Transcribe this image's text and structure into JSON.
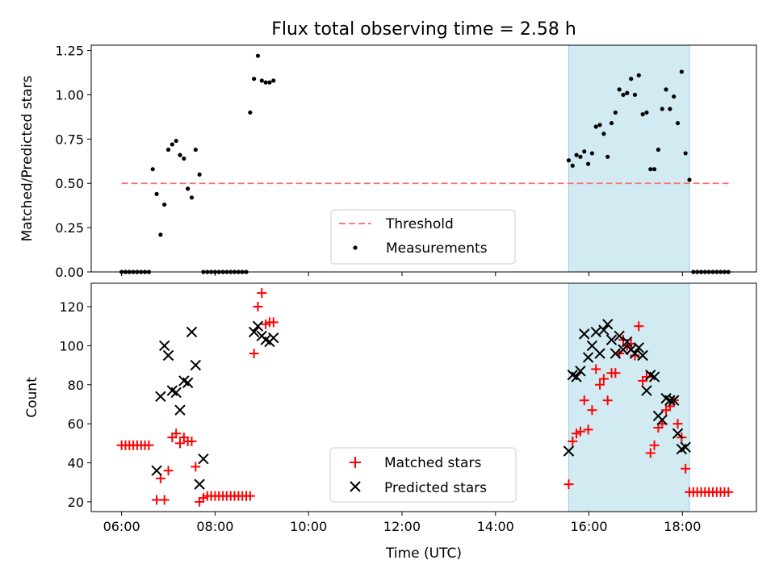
{
  "chart_data": [
    {
      "type": "scatter",
      "title": "Flux total observing time = 2.58 h",
      "xlabel": "",
      "ylabel": "Matched/Predicted stars",
      "xlim": [
        "05:21",
        "19:35"
      ],
      "ylim": [
        0,
        1.28
      ],
      "yticks": [
        "0.00",
        "0.25",
        "0.50",
        "0.75",
        "1.00",
        "1.25"
      ],
      "yticks_values": [
        0,
        0.25,
        0.5,
        0.75,
        1.0,
        1.25
      ],
      "grid": false,
      "legend_position": "bottom-center",
      "shaded_interval": {
        "start": "15:34",
        "end": "18:09",
        "color": "#add8e6"
      },
      "threshold": {
        "name": "Threshold",
        "value": 0.5,
        "x_start": "06:00",
        "x_end": "19:00",
        "color": "#ff6b6b"
      },
      "series": [
        {
          "name": "Measurements",
          "color": "#000000",
          "x": [
            "06:00",
            "06:05",
            "06:10",
            "06:15",
            "06:20",
            "06:25",
            "06:30",
            "06:35",
            "06:40",
            "06:45",
            "06:50",
            "06:55",
            "07:00",
            "07:05",
            "07:10",
            "07:15",
            "07:20",
            "07:25",
            "07:30",
            "07:35",
            "07:40",
            "07:45",
            "07:50",
            "07:55",
            "08:00",
            "08:05",
            "08:10",
            "08:15",
            "08:20",
            "08:25",
            "08:30",
            "08:35",
            "08:40",
            "08:45",
            "08:50",
            "08:55",
            "09:00",
            "09:05",
            "09:10",
            "09:15",
            "15:34",
            "15:39",
            "15:44",
            "15:49",
            "15:54",
            "15:59",
            "16:04",
            "16:09",
            "16:14",
            "16:19",
            "16:24",
            "16:29",
            "16:34",
            "16:39",
            "16:44",
            "16:49",
            "16:54",
            "16:59",
            "17:04",
            "17:09",
            "17:14",
            "17:19",
            "17:24",
            "17:29",
            "17:34",
            "17:39",
            "17:44",
            "17:49",
            "17:54",
            "17:59",
            "18:04",
            "18:09",
            "18:14",
            "18:19",
            "18:24",
            "18:29",
            "18:34",
            "18:39",
            "18:44",
            "18:49",
            "18:54",
            "18:59"
          ],
          "y": [
            0,
            0,
            0,
            0,
            0,
            0,
            0,
            0,
            0.58,
            0.44,
            0.21,
            0.38,
            0.69,
            0.72,
            0.74,
            0.66,
            0.64,
            0.47,
            0.42,
            0.69,
            0.55,
            0,
            0,
            0,
            0,
            0,
            0,
            0,
            0,
            0,
            0,
            0,
            0,
            0.9,
            1.09,
            1.22,
            1.08,
            1.07,
            1.07,
            1.08,
            0.63,
            0.6,
            0.66,
            0.65,
            0.68,
            0.61,
            0.67,
            0.82,
            0.83,
            0.78,
            0.65,
            0.84,
            0.9,
            1.03,
            1.0,
            1.01,
            1.09,
            1.0,
            1.11,
            0.89,
            0.9,
            0.58,
            0.58,
            0.69,
            0.92,
            1.03,
            0.92,
            0.99,
            0.84,
            1.13,
            0.67,
            0.52,
            0,
            0,
            0,
            0,
            0,
            0,
            0,
            0,
            0,
            0
          ]
        }
      ]
    },
    {
      "type": "scatter",
      "title": "",
      "xlabel": "Time (UTC)",
      "ylabel": "Count",
      "xlim": [
        "05:21",
        "19:35"
      ],
      "xticks": [
        "06:00",
        "08:00",
        "10:00",
        "12:00",
        "14:00",
        "16:00",
        "18:00"
      ],
      "ylim": [
        15,
        132
      ],
      "yticks": [
        "20",
        "40",
        "60",
        "80",
        "100",
        "120"
      ],
      "yticks_values": [
        20,
        40,
        60,
        80,
        100,
        120
      ],
      "grid": false,
      "legend_position": "bottom-center",
      "shaded_interval": {
        "start": "15:34",
        "end": "18:09",
        "color": "#add8e6"
      },
      "series": [
        {
          "name": "Matched stars",
          "marker": "plus",
          "color": "#ff0000",
          "x": [
            "06:00",
            "06:05",
            "06:10",
            "06:15",
            "06:20",
            "06:25",
            "06:30",
            "06:35",
            "06:45",
            "06:50",
            "06:55",
            "07:00",
            "07:05",
            "07:10",
            "07:15",
            "07:20",
            "07:25",
            "07:30",
            "07:35",
            "07:40",
            "07:45",
            "07:50",
            "07:55",
            "08:00",
            "08:05",
            "08:10",
            "08:15",
            "08:20",
            "08:25",
            "08:30",
            "08:35",
            "08:40",
            "08:45",
            "08:50",
            "08:55",
            "09:00",
            "09:05",
            "09:10",
            "09:15",
            "15:34",
            "15:39",
            "15:44",
            "15:49",
            "15:54",
            "15:59",
            "16:04",
            "16:09",
            "16:14",
            "16:19",
            "16:24",
            "16:29",
            "16:34",
            "16:39",
            "16:44",
            "16:49",
            "16:54",
            "16:59",
            "17:04",
            "17:09",
            "17:14",
            "17:19",
            "17:24",
            "17:29",
            "17:34",
            "17:39",
            "17:44",
            "17:49",
            "17:54",
            "17:59",
            "18:04",
            "18:09",
            "18:14",
            "18:19",
            "18:24",
            "18:29",
            "18:34",
            "18:39",
            "18:44",
            "18:49",
            "18:54",
            "18:59"
          ],
          "y": [
            49,
            49,
            49,
            49,
            49,
            49,
            49,
            49,
            21,
            32,
            21,
            36,
            53,
            55,
            50,
            53,
            51,
            51,
            38,
            20,
            22,
            23,
            23,
            23,
            23,
            23,
            23,
            23,
            23,
            23,
            23,
            23,
            23,
            96,
            120,
            127,
            111,
            112,
            112,
            29,
            51,
            55,
            56,
            72,
            57,
            67,
            88,
            80,
            83,
            72,
            86,
            86,
            96,
            103,
            100,
            101,
            95,
            110,
            82,
            84,
            45,
            49,
            58,
            60,
            67,
            69,
            72,
            60,
            53,
            37,
            25,
            25,
            25,
            25,
            25,
            25,
            25,
            25,
            25,
            25,
            25
          ]
        },
        {
          "name": "Predicted stars",
          "marker": "x",
          "color": "#000000",
          "x": [
            "06:45",
            "06:50",
            "06:55",
            "07:00",
            "07:05",
            "07:10",
            "07:15",
            "07:20",
            "07:25",
            "07:30",
            "07:35",
            "07:40",
            "07:45",
            "08:50",
            "08:55",
            "09:00",
            "09:05",
            "09:10",
            "09:15",
            "15:34",
            "15:39",
            "15:44",
            "15:49",
            "15:54",
            "15:59",
            "16:04",
            "16:09",
            "16:14",
            "16:19",
            "16:24",
            "16:29",
            "16:34",
            "16:39",
            "16:44",
            "16:49",
            "16:54",
            "16:59",
            "17:04",
            "17:09",
            "17:14",
            "17:19",
            "17:24",
            "17:29",
            "17:34",
            "17:39",
            "17:44",
            "17:49",
            "17:54",
            "17:59",
            "18:04"
          ],
          "y": [
            36,
            74,
            100,
            95,
            77,
            76,
            67,
            82,
            81,
            107,
            90,
            29,
            42,
            107,
            110,
            105,
            103,
            102,
            104,
            46,
            85,
            84,
            87,
            106,
            94,
            100,
            107,
            96,
            108,
            111,
            103,
            96,
            105,
            98,
            102,
            98,
            96,
            99,
            95,
            77,
            85,
            84,
            64,
            62,
            73,
            72,
            72,
            55,
            47,
            48
          ]
        }
      ]
    }
  ]
}
